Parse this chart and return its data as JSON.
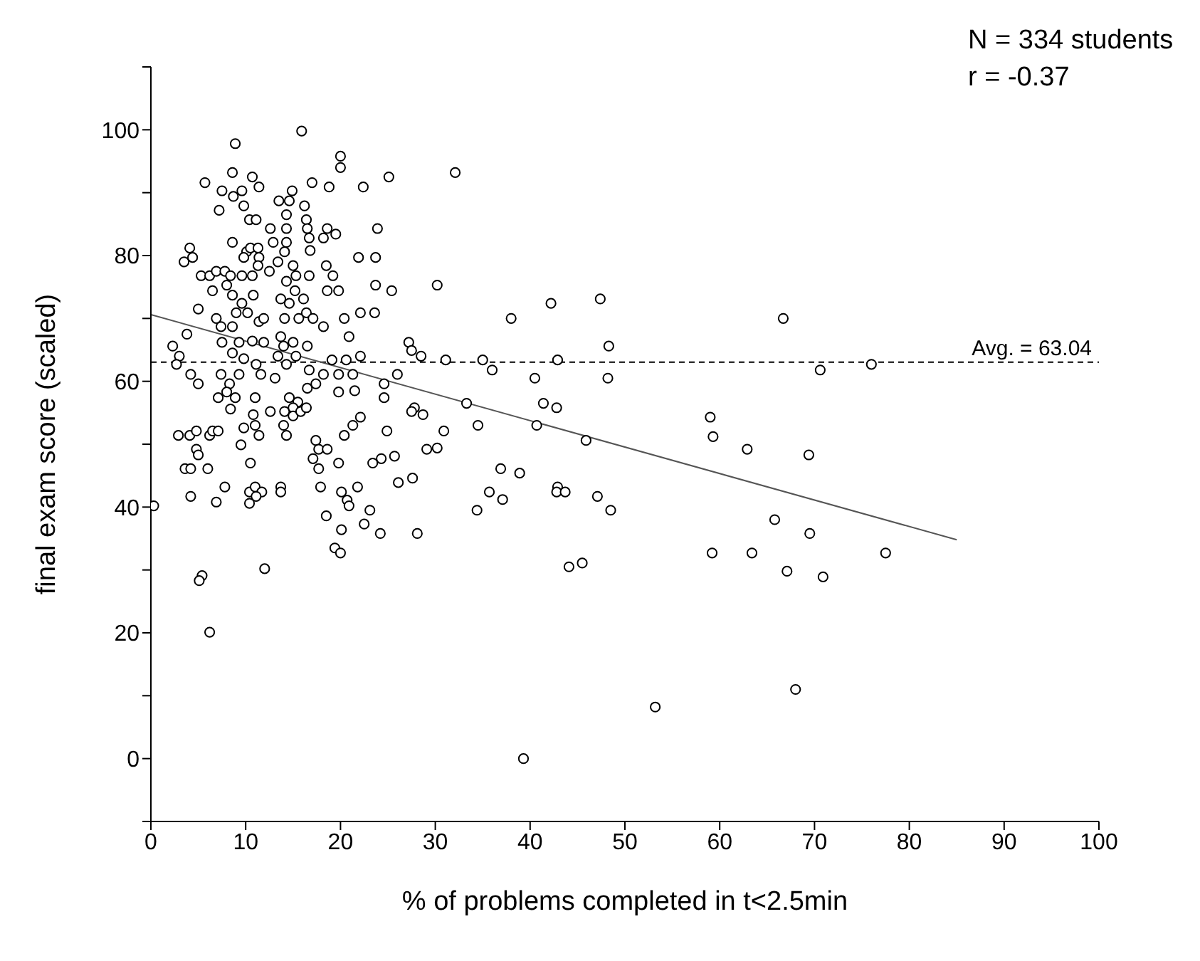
{
  "chart_data": {
    "type": "scatter",
    "xlabel": "% of problems completed in t<2.5min",
    "ylabel": "final exam score (scaled)",
    "annotations": [
      "N = 334 students",
      "r = -0.37"
    ],
    "xlim": [
      0,
      100
    ],
    "xticks": [
      0,
      10,
      20,
      30,
      40,
      50,
      60,
      70,
      80,
      90,
      100
    ],
    "ylim": [
      -10,
      110
    ],
    "yticks": [
      {
        "value": -10,
        "label": null
      },
      0,
      {
        "value": 10,
        "label": null
      },
      20,
      {
        "value": 30,
        "label": null
      },
      40,
      {
        "value": 50,
        "label": null
      },
      60,
      {
        "value": 70,
        "label": null
      },
      80,
      {
        "value": 90,
        "label": null
      },
      100,
      {
        "value": 110,
        "label": null
      }
    ],
    "ref_lines": [
      {
        "axis": "y",
        "value": 63.04,
        "label": "Avg. = 63.04",
        "color": "#000000",
        "line_style": "dashed"
      }
    ],
    "series": [
      {
        "color": "#000000",
        "marker": "circle",
        "x": [
          35.0,
          36.0,
          38.0,
          42.2,
          47.4,
          48.3,
          42.9,
          40.5,
          48.2,
          41.4,
          42.8,
          34.5,
          40.7,
          45.9,
          36.9,
          38.9,
          35.7,
          37.1,
          34.4,
          42.9,
          42.8,
          43.7,
          47.1,
          48.5,
          44.1,
          45.5,
          39.3,
          53.2,
          68.0,
          66.7,
          70.6,
          76.0,
          59.0,
          59.3,
          62.9,
          69.4,
          65.8,
          69.5,
          59.2,
          63.4,
          77.5,
          67.1,
          70.9,
          0.3,
          2.9,
          4.1,
          4.8,
          6.2,
          6.5,
          7.1,
          9.8,
          11.0,
          11.4,
          9.5,
          4.8,
          5.0,
          3.6,
          4.2,
          6.0,
          10.5,
          7.8,
          4.2,
          6.9,
          10.4,
          11.0,
          11.7,
          11.1,
          10.4,
          13.7,
          13.7,
          5.4,
          5.1,
          12.0,
          6.2,
          14.0,
          14.3,
          17.4,
          17.7,
          18.6,
          17.1,
          17.7,
          19.8,
          20.4,
          21.3,
          17.9,
          20.1,
          20.7,
          20.9,
          18.5,
          20.1,
          19.4,
          20.0,
          21.8,
          23.1,
          22.5,
          24.2,
          23.4,
          24.3,
          25.7,
          26.1,
          27.6,
          28.1,
          29.1,
          30.2,
          30.9,
          24.9,
          15.9,
          8.9,
          20.0,
          20.0,
          32.1,
          8.6,
          10.7,
          5.7,
          11.4,
          17.0,
          18.8,
          22.4,
          25.1,
          7.5,
          9.6,
          8.7,
          14.9,
          13.5,
          14.6,
          9.8,
          16.2,
          7.2,
          14.3,
          10.4,
          11.1,
          16.4,
          12.6,
          14.3,
          16.5,
          18.6,
          23.9,
          16.7,
          18.2,
          19.5,
          12.9,
          14.3,
          8.6,
          4.1,
          16.8,
          3.5,
          4.4,
          10.1,
          10.5,
          11.3,
          14.1,
          11.4,
          9.8,
          21.9,
          23.7,
          13.4,
          15.0,
          11.3,
          12.5,
          5.3,
          6.2,
          6.9,
          7.8,
          8.4,
          9.6,
          10.7,
          14.3,
          16.7,
          18.5,
          19.2,
          15.3,
          6.5,
          8.0,
          18.6,
          19.8,
          23.7,
          25.4,
          30.2,
          8.6,
          10.8,
          9.6,
          15.2,
          13.7,
          14.6,
          16.1,
          5.0,
          9.0,
          10.2,
          11.4,
          11.9,
          14.1,
          15.6,
          16.4,
          17.1,
          18.2,
          20.4,
          22.1,
          23.6,
          6.9,
          7.4,
          8.6,
          3.8,
          2.3,
          3.0,
          2.7,
          7.5,
          9.3,
          10.7,
          11.9,
          13.7,
          14.0,
          15.0,
          16.5,
          20.9,
          22.1,
          27.2,
          27.5,
          28.5,
          31.1,
          19.1,
          20.6,
          9.8,
          8.6,
          11.1,
          13.4,
          14.3,
          15.3,
          4.2,
          5.0,
          7.4,
          9.3,
          8.3,
          11.6,
          13.1,
          16.7,
          18.2,
          19.8,
          21.3,
          24.6,
          26.0,
          16.5,
          17.4,
          19.8,
          21.5,
          24.6,
          7.1,
          8.0,
          8.9,
          11.0,
          14.6,
          15.5,
          8.4,
          14.1,
          15.0,
          15.0,
          15.8,
          16.4,
          10.8,
          12.6,
          22.1,
          27.8,
          27.5,
          28.7,
          33.3
        ],
        "values": [
          63.4,
          61.8,
          70.0,
          72.4,
          73.1,
          65.6,
          63.4,
          60.5,
          60.5,
          56.5,
          55.8,
          53.0,
          53.0,
          50.6,
          46.1,
          45.4,
          42.4,
          41.2,
          39.5,
          43.2,
          42.4,
          42.4,
          41.7,
          39.5,
          30.5,
          31.1,
          0,
          8.2,
          11.0,
          70.0,
          61.8,
          62.7,
          54.3,
          51.2,
          49.2,
          48.3,
          38.0,
          35.8,
          32.7,
          32.7,
          32.7,
          29.8,
          28.9,
          40.2,
          51.4,
          51.4,
          52.1,
          51.4,
          52.1,
          52.1,
          52.6,
          53.0,
          51.4,
          49.9,
          49.2,
          48.3,
          46.1,
          46.1,
          46.1,
          47.0,
          43.2,
          41.7,
          40.8,
          42.4,
          43.2,
          42.4,
          41.7,
          40.6,
          43.2,
          42.4,
          29.1,
          28.3,
          30.2,
          20.1,
          53.0,
          51.4,
          50.6,
          49.2,
          49.2,
          47.7,
          46.1,
          47.0,
          51.4,
          53.0,
          43.2,
          42.4,
          41.1,
          40.2,
          38.6,
          36.4,
          33.5,
          32.7,
          43.2,
          39.5,
          37.3,
          35.8,
          47.0,
          47.7,
          48.1,
          43.9,
          44.6,
          35.8,
          49.2,
          49.4,
          52.1,
          52.1,
          99.8,
          97.8,
          95.8,
          94.0,
          93.2,
          93.2,
          92.5,
          91.6,
          90.9,
          91.6,
          90.9,
          90.9,
          92.5,
          90.3,
          90.3,
          89.4,
          90.3,
          88.7,
          88.7,
          87.9,
          87.9,
          87.2,
          86.5,
          85.7,
          85.7,
          85.7,
          84.3,
          84.3,
          84.3,
          84.3,
          84.3,
          82.8,
          82.8,
          83.4,
          82.1,
          82.1,
          82.1,
          81.2,
          80.8,
          79.0,
          79.7,
          80.6,
          81.2,
          81.2,
          80.6,
          79.7,
          79.7,
          79.7,
          79.7,
          79.0,
          78.4,
          78.4,
          77.5,
          76.8,
          76.8,
          77.5,
          77.5,
          76.8,
          76.8,
          76.8,
          75.9,
          76.8,
          78.4,
          76.8,
          76.8,
          74.4,
          75.3,
          74.4,
          74.4,
          75.3,
          74.4,
          75.3,
          73.7,
          73.7,
          72.4,
          74.4,
          73.1,
          72.4,
          73.1,
          71.5,
          70.9,
          70.9,
          69.5,
          70.0,
          70.0,
          70.0,
          70.9,
          70.0,
          68.7,
          70.0,
          70.9,
          70.9,
          70.0,
          68.7,
          68.7,
          67.5,
          65.6,
          64.0,
          62.7,
          66.2,
          66.2,
          66.4,
          66.2,
          67.1,
          65.6,
          66.2,
          65.6,
          67.1,
          64.0,
          66.2,
          64.9,
          64.0,
          63.4,
          63.4,
          63.4,
          63.6,
          64.5,
          62.7,
          64.0,
          62.7,
          64.0,
          61.1,
          59.6,
          61.1,
          61.1,
          59.6,
          61.1,
          60.5,
          61.8,
          61.1,
          61.1,
          61.1,
          59.6,
          61.1,
          58.9,
          59.6,
          58.3,
          58.5,
          57.4,
          57.4,
          58.3,
          57.4,
          57.4,
          57.4,
          56.7,
          55.6,
          55.2,
          55.8,
          54.5,
          55.2,
          55.8,
          54.7,
          55.2,
          54.3,
          55.8,
          55.2,
          54.7,
          56.5
        ]
      },
      {
        "type": "line",
        "color": "#555555",
        "marker": "none",
        "line_style": "solid",
        "x": [
          0,
          85
        ],
        "values": [
          70.6,
          34.8
        ]
      }
    ]
  }
}
